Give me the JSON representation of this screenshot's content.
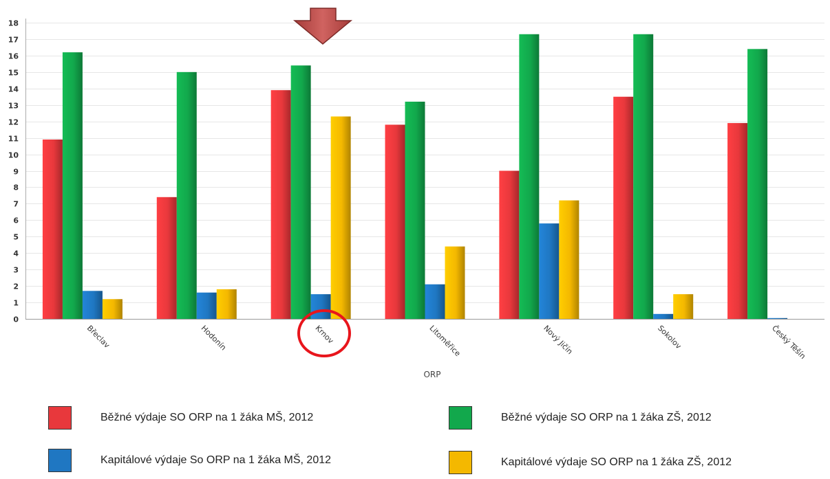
{
  "chart_data": {
    "type": "bar",
    "xlabel": "ORP",
    "ylabel": "",
    "ylim": [
      0,
      18
    ],
    "yticks": [
      0,
      1,
      2,
      3,
      4,
      5,
      6,
      7,
      8,
      9,
      10,
      11,
      12,
      13,
      14,
      15,
      16,
      17,
      18
    ],
    "grid": true,
    "legend_position": "bottom",
    "categories": [
      "Břeclav",
      "Hodonín",
      "Krnov",
      "Litoměřice",
      "Nový Jičín",
      "Sokolov",
      "Český Těšín"
    ],
    "series": [
      {
        "name": "Běžné výdaje SO ORP na 1 žáka MŠ, 2012",
        "color": "#e8383c",
        "values": [
          10.9,
          7.4,
          13.9,
          11.8,
          9.0,
          13.5,
          11.9
        ]
      },
      {
        "name": "Běžné výdaje SO ORP na 1 žáka ZŠ, 2012",
        "color": "#12a84c",
        "values": [
          16.2,
          15.0,
          15.4,
          13.2,
          17.3,
          17.3,
          16.4
        ]
      },
      {
        "name": "Kapitálové výdaje So ORP na 1 žáka MŠ, 2012",
        "color": "#1f77c2",
        "values": [
          1.7,
          1.6,
          1.5,
          2.1,
          5.8,
          0.3,
          0.05
        ]
      },
      {
        "name": "Kapitálové výdaje SO ORP na 1 žáka ZŠ, 2012",
        "color": "#f4b800",
        "values": [
          1.2,
          1.8,
          12.3,
          4.4,
          7.2,
          1.5,
          0
        ]
      }
    ],
    "highlight": {
      "category": "Krnov",
      "arrow_color": "#c0504d",
      "circle_color": "#e8151c"
    }
  }
}
